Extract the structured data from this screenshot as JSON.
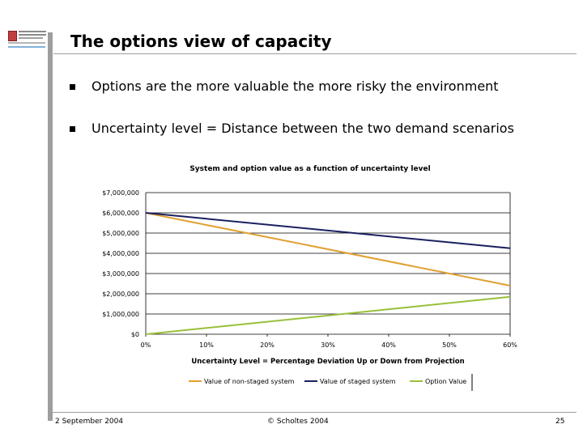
{
  "slide": {
    "title": "The options view of capacity",
    "bullets": [
      "Options are the more valuable the more risky the environment",
      "Uncertainty level = Distance between the two demand scenarios"
    ],
    "footer": {
      "date": "2 September 2004",
      "copyright": "© Scholtes 2004",
      "page": "25"
    }
  },
  "chart_data": {
    "type": "line",
    "title": "System and option value as a function of uncertainty level",
    "xlabel": "Uncertainty Level = Percentage Deviation Up or Down from Projection",
    "ylabel": "",
    "x": [
      0,
      60
    ],
    "x_tick_labels": [
      "0%",
      "10%",
      "20%",
      "30%",
      "40%",
      "50%",
      "60%"
    ],
    "y_tick_labels": [
      "$0",
      "$1,000,000",
      "$2,000,000",
      "$3,000,000",
      "$4,000,000",
      "$5,000,000",
      "$6,000,000",
      "$7,000,000"
    ],
    "xlim": [
      0,
      60
    ],
    "ylim": [
      0,
      7000000
    ],
    "grid": "horizontal",
    "legend_position": "bottom",
    "series": [
      {
        "name": "Value of non-staged system",
        "color": "#e0a030",
        "values": [
          6000000,
          2400000
        ]
      },
      {
        "name": "Value of staged system",
        "color": "#1a2060",
        "values": [
          6000000,
          4250000
        ]
      },
      {
        "name": "Option Value",
        "color": "#99c03a",
        "values": [
          0,
          1850000
        ]
      }
    ]
  }
}
